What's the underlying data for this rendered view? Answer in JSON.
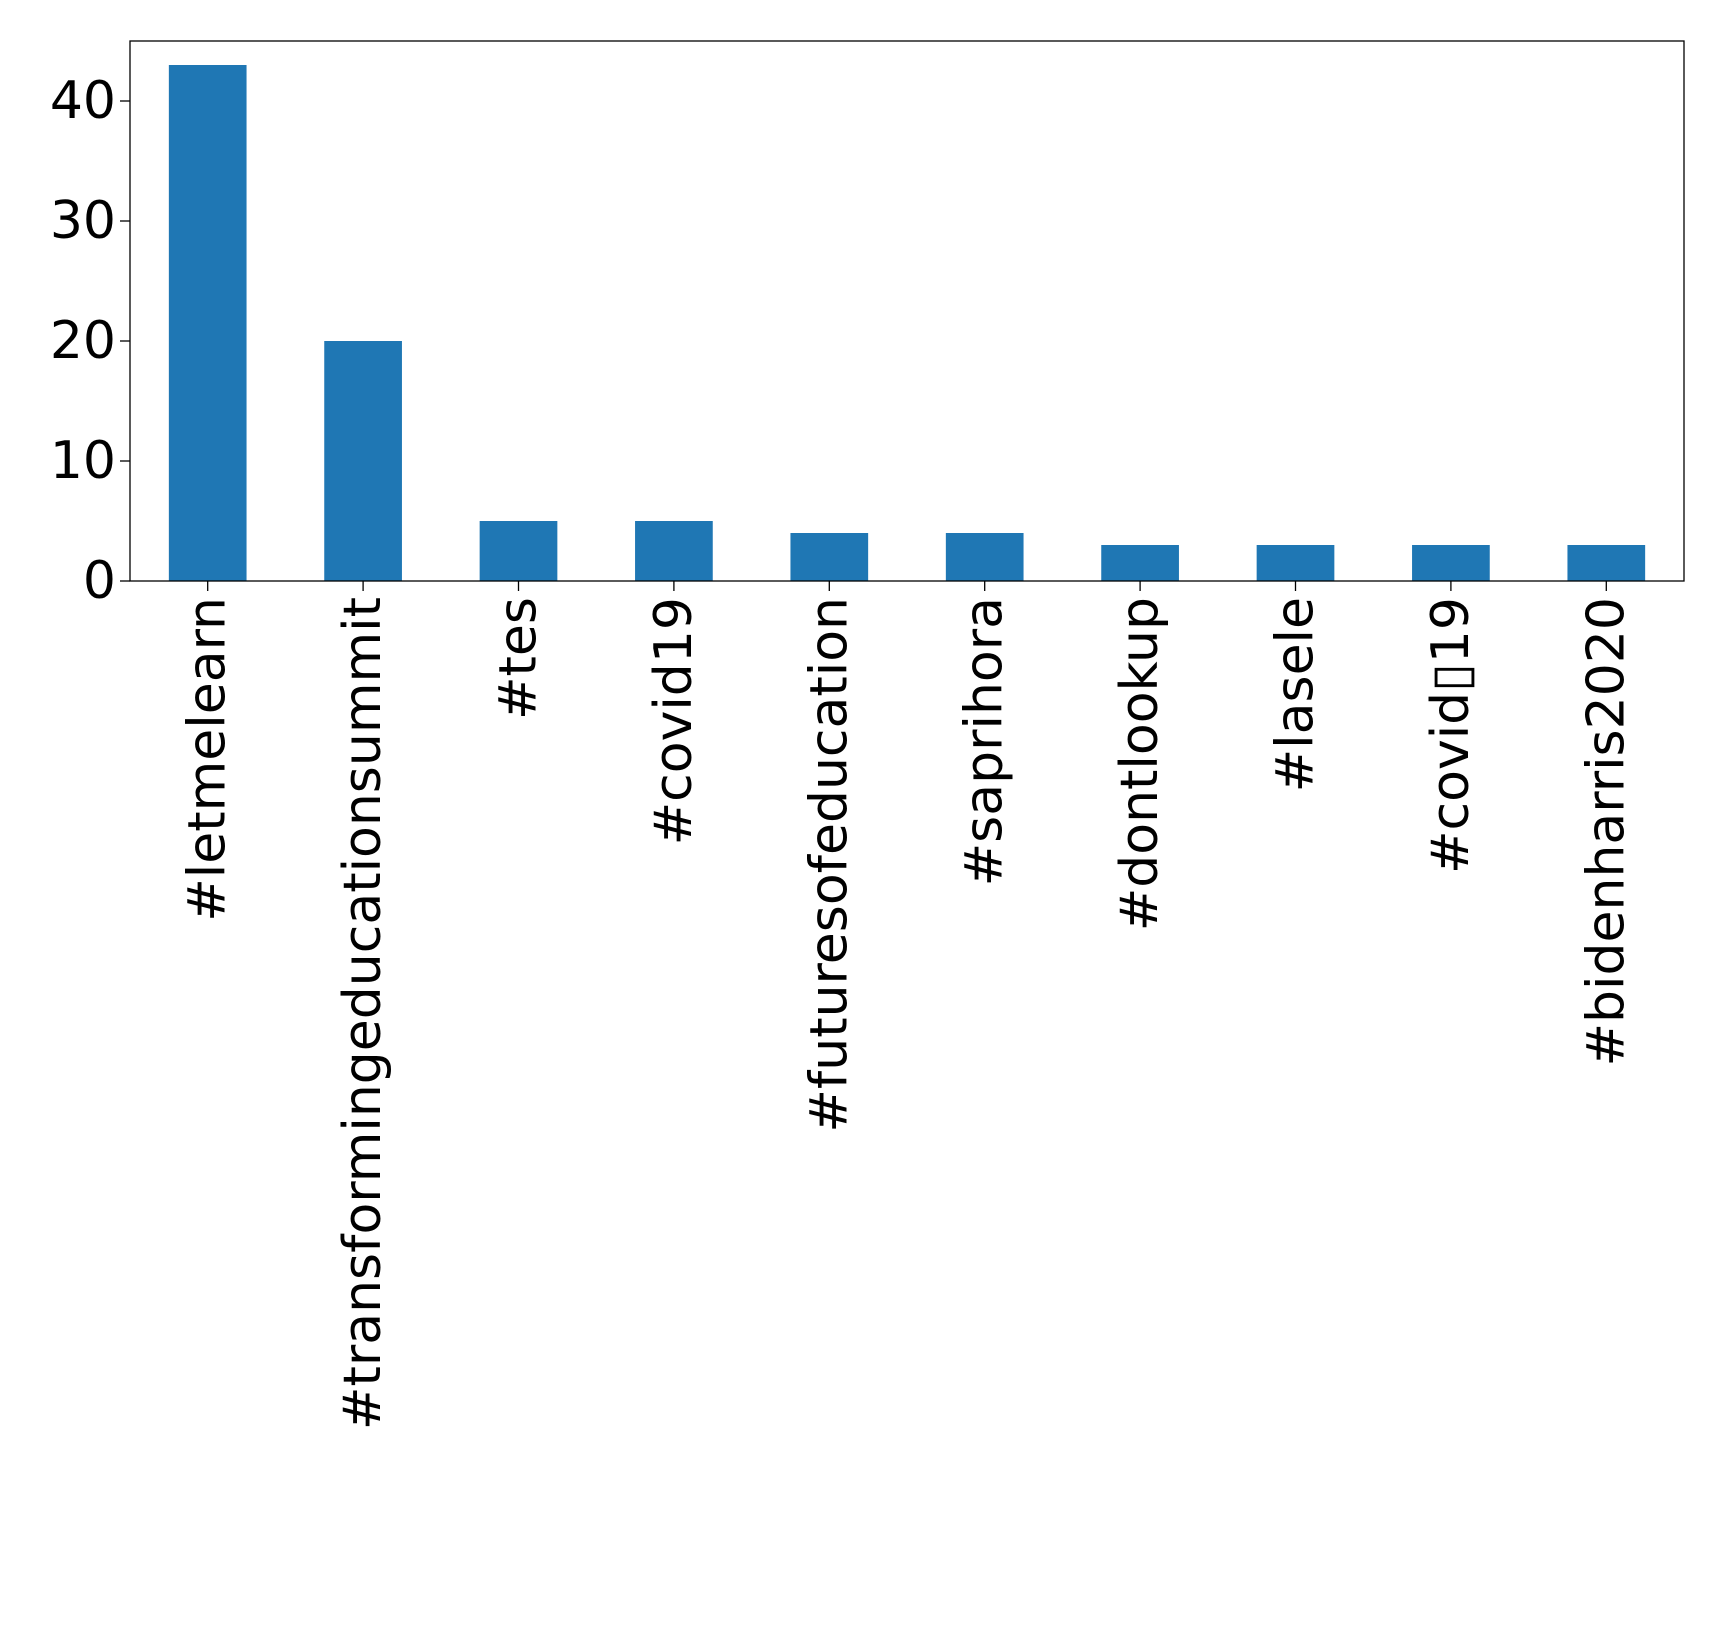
{
  "chart_data": {
    "type": "bar",
    "categories": [
      "#letmelearn",
      "#transformingeducationsummit",
      "#tes",
      "#covid19",
      "#futuresofeducation",
      "#saprihora",
      "#dontlookup",
      "#lasele",
      "#covid▯19",
      "#bidenharris2020"
    ],
    "values": [
      43,
      20,
      5,
      5,
      4,
      4,
      3,
      3,
      3,
      3
    ],
    "yticks": [
      "0",
      "10",
      "20",
      "30",
      "40"
    ],
    "ylim": [
      0,
      45
    ],
    "title": "",
    "xlabel": "",
    "ylabel": "",
    "grid": false,
    "legend": "none",
    "bar_color": "#1f77b4"
  }
}
